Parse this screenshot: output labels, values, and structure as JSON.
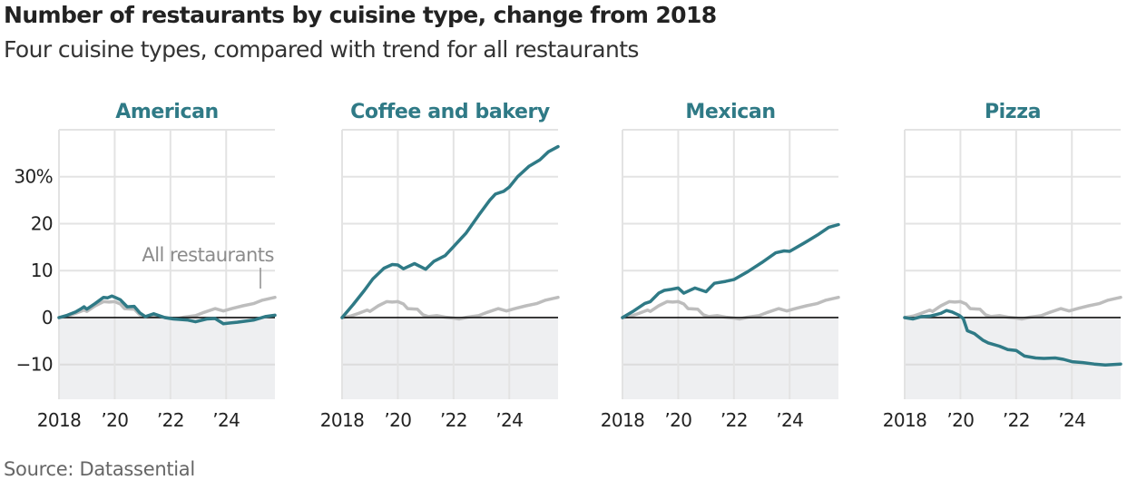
{
  "header": {
    "title": "Number of restaurants by cuisine type, change from 2018",
    "subtitle": "Four cuisine types, compared with trend for all restaurants"
  },
  "footer": {
    "source": "Source: Datassential"
  },
  "colors": {
    "cuisine_line": "#2f7a86",
    "all_restaurants_line": "#bdbdbd",
    "panel_title": "#2f7a86",
    "gridline": "#e3e3e3",
    "negative_shading": "#eeeff1",
    "zero_line": "#111111",
    "annotation": "#8c8c8c"
  },
  "chart_data": {
    "type": "line",
    "layout": "small-multiples",
    "title": "Number of restaurants by cuisine type, change from 2018",
    "subtitle": "Four cuisine types, compared with trend for all restaurants",
    "xlabel": "",
    "ylabel": "",
    "xlim": [
      2018,
      2025.75
    ],
    "ylim": [
      -17.4,
      40
    ],
    "grid": true,
    "x_ticks": [
      2018,
      2020,
      2022,
      2024
    ],
    "x_tick_labels": [
      "2018",
      "’20",
      "’22",
      "’24"
    ],
    "y_ticks": [
      30,
      20,
      10,
      0,
      -10
    ],
    "y_tick_labels": [
      "30%",
      "20",
      "10",
      "0",
      "−10"
    ],
    "annotation": {
      "text": "All restaurants",
      "panel": "American",
      "target_series": "All restaurants"
    },
    "all_restaurants": {
      "name": "All restaurants",
      "x": [
        2018,
        2018.3,
        2018.6,
        2018.9,
        2019.0,
        2019.3,
        2019.6,
        2019.8,
        2020.0,
        2020.2,
        2020.35,
        2020.7,
        2020.9,
        2021.1,
        2021.4,
        2021.7,
        2022.0,
        2022.2,
        2022.5,
        2022.9,
        2023.2,
        2023.6,
        2023.9,
        2024.2,
        2024.6,
        2025.0,
        2025.3,
        2025.75
      ],
      "values": [
        0,
        0.3,
        0.9,
        1.6,
        1.3,
        2.5,
        3.4,
        3.3,
        3.4,
        2.9,
        1.9,
        1.8,
        0.6,
        0.2,
        0.4,
        0.1,
        -0.1,
        -0.3,
        0.1,
        0.4,
        1.1,
        1.9,
        1.4,
        1.9,
        2.5,
        3.0,
        3.7,
        4.3
      ]
    },
    "panels": [
      {
        "name": "American",
        "x": [
          2018,
          2018.3,
          2018.6,
          2018.8,
          2018.9,
          2019.0,
          2019.3,
          2019.6,
          2019.75,
          2019.9,
          2020.2,
          2020.45,
          2020.7,
          2020.9,
          2021.1,
          2021.4,
          2021.8,
          2022.1,
          2022.6,
          2022.9,
          2023.3,
          2023.6,
          2023.9,
          2024.4,
          2025.0,
          2025.4,
          2025.75
        ],
        "values": [
          0,
          0.5,
          1.2,
          1.9,
          2.3,
          1.8,
          3.0,
          4.3,
          4.2,
          4.6,
          3.8,
          2.3,
          2.4,
          1.0,
          0.2,
          0.8,
          0.0,
          -0.3,
          -0.5,
          -0.9,
          -0.3,
          -0.2,
          -1.3,
          -1.0,
          -0.5,
          0.2,
          0.5
        ]
      },
      {
        "name": "Coffee and bakery",
        "x": [
          2018,
          2018.4,
          2018.8,
          2019.1,
          2019.5,
          2019.8,
          2020.0,
          2020.2,
          2020.6,
          2021.0,
          2021.3,
          2021.7,
          2022.0,
          2022.45,
          2022.9,
          2023.3,
          2023.5,
          2023.8,
          2024.0,
          2024.3,
          2024.7,
          2025.1,
          2025.4,
          2025.75
        ],
        "values": [
          0,
          2.8,
          5.8,
          8.2,
          10.5,
          11.3,
          11.2,
          10.4,
          11.5,
          10.3,
          12.0,
          13.2,
          15.1,
          18.0,
          21.8,
          25.0,
          26.3,
          26.9,
          27.8,
          30.0,
          32.2,
          33.6,
          35.3,
          36.4
        ]
      },
      {
        "name": "Mexican",
        "x": [
          2018,
          2018.4,
          2018.8,
          2019.0,
          2019.3,
          2019.5,
          2019.75,
          2020.0,
          2020.2,
          2020.6,
          2021.0,
          2021.3,
          2021.7,
          2022.0,
          2022.5,
          2023.0,
          2023.5,
          2023.8,
          2024.0,
          2024.5,
          2025.0,
          2025.4,
          2025.75
        ],
        "values": [
          0,
          1.4,
          3.0,
          3.4,
          5.2,
          5.8,
          6.0,
          6.3,
          5.2,
          6.3,
          5.5,
          7.3,
          7.7,
          8.1,
          9.8,
          11.7,
          13.8,
          14.2,
          14.1,
          15.8,
          17.6,
          19.2,
          19.8
        ]
      },
      {
        "name": "Pizza",
        "x": [
          2018,
          2018.3,
          2018.6,
          2018.9,
          2019.1,
          2019.3,
          2019.5,
          2019.7,
          2019.95,
          2020.1,
          2020.25,
          2020.5,
          2020.8,
          2021.0,
          2021.4,
          2021.7,
          2022.0,
          2022.3,
          2022.7,
          2023.0,
          2023.4,
          2023.7,
          2024.0,
          2024.4,
          2024.8,
          2025.2,
          2025.75
        ],
        "values": [
          0,
          -0.3,
          0.2,
          0.3,
          0.6,
          0.9,
          1.5,
          1.2,
          0.5,
          -0.2,
          -2.8,
          -3.4,
          -4.8,
          -5.4,
          -6.1,
          -6.8,
          -7.0,
          -8.2,
          -8.6,
          -8.7,
          -8.6,
          -8.9,
          -9.4,
          -9.6,
          -9.9,
          -10.1,
          -9.9
        ]
      }
    ]
  }
}
